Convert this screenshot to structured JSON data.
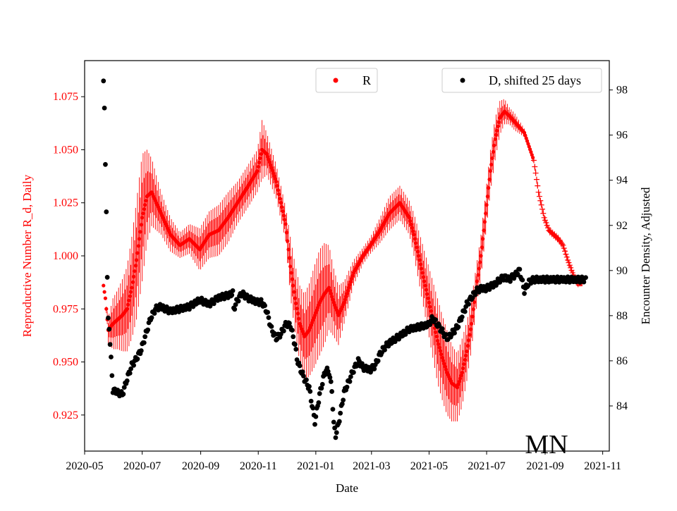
{
  "chart_data": {
    "type": "scatter",
    "xlabel": "Date",
    "ylabel_left": "Reproductive Number R_d, Daily",
    "ylabel_right": "Encounter Density, Adjusted",
    "annotation": "MN",
    "x_range": [
      "2020-05-01",
      "2021-11-08"
    ],
    "ylim_left": [
      0.908,
      1.092
    ],
    "ylim_right": [
      82.0,
      99.3
    ],
    "x_ticks": [
      "2020-05",
      "2020-07",
      "2020-09",
      "2020-11",
      "2021-01",
      "2021-03",
      "2021-05",
      "2021-07",
      "2021-09",
      "2021-11"
    ],
    "y_ticks_left": [
      "0.925",
      "0.950",
      "0.975",
      "1.000",
      "1.025",
      "1.050",
      "1.075"
    ],
    "y_ticks_right": [
      "84",
      "86",
      "88",
      "90",
      "92",
      "94",
      "96",
      "98"
    ],
    "colors": {
      "R": "#ff0000",
      "D": "#000000",
      "left_axis": "#ff0000",
      "right_axis": "#000000"
    },
    "series": [
      {
        "name": "R",
        "axis": "left",
        "color": "#ff0000",
        "x": [
          "2020-05-21",
          "2020-05-23",
          "2020-05-26",
          "2020-05-31",
          "2020-06-05",
          "2020-06-10",
          "2020-06-15",
          "2020-06-20",
          "2020-06-25",
          "2020-07-01",
          "2020-07-06",
          "2020-07-11",
          "2020-07-21",
          "2020-07-31",
          "2020-08-10",
          "2020-08-20",
          "2020-08-31",
          "2020-09-10",
          "2020-09-20",
          "2020-09-30",
          "2020-10-10",
          "2020-10-20",
          "2020-10-31",
          "2020-11-05",
          "2020-11-10",
          "2020-11-20",
          "2020-11-30",
          "2020-12-05",
          "2020-12-10",
          "2020-12-15",
          "2020-12-20",
          "2020-12-25",
          "2020-12-31",
          "2021-01-05",
          "2021-01-10",
          "2021-01-15",
          "2021-01-20",
          "2021-01-25",
          "2021-01-31",
          "2021-02-05",
          "2021-02-10",
          "2021-02-20",
          "2021-02-28",
          "2021-03-10",
          "2021-03-20",
          "2021-03-31",
          "2021-04-10",
          "2021-04-15",
          "2021-04-20",
          "2021-04-25",
          "2021-04-30",
          "2021-05-05",
          "2021-05-10",
          "2021-05-15",
          "2021-05-20",
          "2021-05-25",
          "2021-05-31",
          "2021-06-05",
          "2021-06-10",
          "2021-06-15",
          "2021-06-20",
          "2021-06-25",
          "2021-06-30",
          "2021-07-05",
          "2021-07-10",
          "2021-07-15",
          "2021-07-20",
          "2021-07-25",
          "2021-07-31",
          "2021-08-10",
          "2021-08-20",
          "2021-08-25",
          "2021-08-31",
          "2021-09-05",
          "2021-09-10",
          "2021-09-15",
          "2021-09-20",
          "2021-09-25",
          "2021-09-30",
          "2021-10-05",
          "2021-10-10"
        ],
        "y": [
          0.986,
          0.98,
          0.965,
          0.968,
          0.97,
          0.972,
          0.975,
          0.985,
          0.998,
          1.018,
          1.028,
          1.03,
          1.02,
          1.01,
          1.005,
          1.008,
          1.003,
          1.01,
          1.012,
          1.018,
          1.025,
          1.032,
          1.04,
          1.05,
          1.048,
          1.035,
          1.015,
          0.995,
          0.98,
          0.968,
          0.962,
          0.965,
          0.972,
          0.978,
          0.982,
          0.985,
          0.978,
          0.972,
          0.978,
          0.985,
          0.992,
          1.0,
          1.005,
          1.012,
          1.02,
          1.025,
          1.018,
          1.01,
          1.0,
          0.99,
          0.98,
          0.97,
          0.96,
          0.952,
          0.945,
          0.94,
          0.938,
          0.945,
          0.955,
          0.968,
          0.985,
          1.0,
          1.02,
          1.04,
          1.055,
          1.065,
          1.068,
          1.066,
          1.063,
          1.058,
          1.045,
          1.03,
          1.018,
          1.012,
          1.01,
          1.008,
          1.005,
          0.998,
          0.992,
          0.987,
          0.987
        ],
        "amp": [
          0,
          0,
          0.006,
          0.012,
          0.014,
          0.017,
          0.02,
          0.024,
          0.028,
          0.03,
          0.022,
          0.016,
          0.01,
          0.008,
          0.006,
          0.007,
          0.01,
          0.011,
          0.012,
          0.012,
          0.01,
          0.01,
          0.01,
          0.014,
          0.01,
          0.008,
          0.008,
          0.014,
          0.016,
          0.018,
          0.02,
          0.022,
          0.024,
          0.025,
          0.024,
          0.02,
          0.016,
          0.014,
          0.01,
          0.008,
          0.006,
          0.004,
          0.004,
          0.006,
          0.008,
          0.008,
          0.008,
          0.01,
          0.012,
          0.014,
          0.016,
          0.018,
          0.02,
          0.02,
          0.02,
          0.018,
          0.016,
          0.016,
          0.014,
          0.012,
          0.01,
          0.01,
          0.01,
          0.01,
          0.01,
          0.008,
          0.006,
          0.004,
          0.004,
          0.002,
          0.002,
          0.002,
          0.002,
          0.002,
          0.002,
          0.002,
          0.002,
          0.002,
          0.002,
          0.002,
          0.001
        ]
      },
      {
        "name": "D, shifted 25 days",
        "axis": "right",
        "color": "#000000",
        "x": [
          "2020-05-21",
          "2020-05-22",
          "2020-05-23",
          "2020-05-24",
          "2020-05-25",
          "2020-05-26",
          "2020-05-27",
          "2020-05-31",
          "2020-06-05",
          "2020-06-10",
          "2020-06-15",
          "2020-06-20",
          "2020-06-25",
          "2020-06-30",
          "2020-07-05",
          "2020-07-10",
          "2020-07-15",
          "2020-07-20",
          "2020-07-31",
          "2020-08-10",
          "2020-08-20",
          "2020-08-31",
          "2020-09-10",
          "2020-09-20",
          "2020-09-30",
          "2020-10-05",
          "2020-10-06",
          "2020-10-10",
          "2020-10-15",
          "2020-10-20",
          "2020-10-31",
          "2020-11-05",
          "2020-11-10",
          "2020-11-15",
          "2020-11-20",
          "2020-11-25",
          "2020-11-30",
          "2020-12-05",
          "2020-12-10",
          "2020-12-12",
          "2020-12-15",
          "2020-12-17",
          "2020-12-20",
          "2020-12-25",
          "2020-12-31",
          "2021-01-05",
          "2021-01-10",
          "2021-01-12",
          "2021-01-15",
          "2021-01-18",
          "2021-01-20",
          "2021-01-22",
          "2021-01-25",
          "2021-01-31",
          "2021-02-05",
          "2021-02-10",
          "2021-02-15",
          "2021-02-20",
          "2021-02-28",
          "2021-03-05",
          "2021-03-10",
          "2021-03-15",
          "2021-03-20",
          "2021-03-31",
          "2021-04-10",
          "2021-04-20",
          "2021-04-30",
          "2021-05-05",
          "2021-05-10",
          "2021-05-15",
          "2021-05-20",
          "2021-05-25",
          "2021-05-31",
          "2021-06-05",
          "2021-06-10",
          "2021-06-15",
          "2021-06-20",
          "2021-06-25",
          "2021-06-30",
          "2021-07-05",
          "2021-07-10",
          "2021-07-15",
          "2021-07-20",
          "2021-07-25",
          "2021-07-31",
          "2021-08-05",
          "2021-08-10",
          "2021-08-15",
          "2021-08-20",
          "2021-08-31",
          "2021-09-10",
          "2021-09-20",
          "2021-09-30",
          "2021-10-10",
          "2021-10-14"
        ],
        "y": [
          98.4,
          97.2,
          94.7,
          92.6,
          89.7,
          87.9,
          87.4,
          84.7,
          84.6,
          84.5,
          85.2,
          85.8,
          86.1,
          86.5,
          87.2,
          87.9,
          88.3,
          88.4,
          88.2,
          88.3,
          88.4,
          88.7,
          88.5,
          88.8,
          88.9,
          89.0,
          88.3,
          88.7,
          89.0,
          88.8,
          88.6,
          88.6,
          88.2,
          87.4,
          87.0,
          87.2,
          87.6,
          87.6,
          86.7,
          86.1,
          85.7,
          85.5,
          85.2,
          84.8,
          83.3,
          84.5,
          85.4,
          85.6,
          85.5,
          84.7,
          83.2,
          82.7,
          83.2,
          84.6,
          85.1,
          85.6,
          86.0,
          85.7,
          85.6,
          85.8,
          86.3,
          86.6,
          86.8,
          87.1,
          87.4,
          87.5,
          87.6,
          87.9,
          87.6,
          87.3,
          87.0,
          87.2,
          87.5,
          88.0,
          88.5,
          88.8,
          89.1,
          89.2,
          89.2,
          89.3,
          89.4,
          89.6,
          89.7,
          89.6,
          89.8,
          90.0,
          89.1,
          89.5,
          89.6,
          89.6,
          89.6,
          89.6,
          89.6,
          89.6,
          89.6
        ]
      }
    ]
  }
}
